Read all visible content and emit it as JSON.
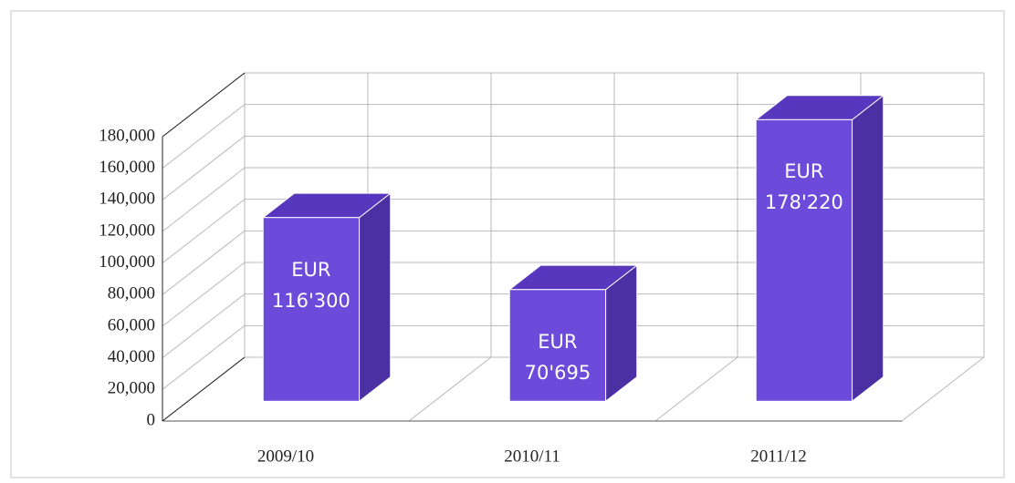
{
  "chart_data": {
    "type": "bar3d",
    "categories": [
      "2009/10",
      "2010/11",
      "2011/12"
    ],
    "values": [
      116300,
      70695,
      178220
    ],
    "value_labels": [
      "EUR 116'300",
      "EUR 70'695",
      "EUR 178'220"
    ],
    "color": "#6c4bdb",
    "ylim": [
      0,
      180000
    ],
    "yticks": [
      0,
      {
        "value": 20000,
        "label": "20,000"
      },
      {
        "value": 40000,
        "label": "40,000"
      },
      {
        "value": 60000,
        "label": "60,000"
      },
      {
        "value": 80000,
        "label": "80,000"
      },
      {
        "value": 100000,
        "label": "100,000"
      },
      {
        "value": 120000,
        "label": "120,000"
      },
      {
        "value": 140000,
        "label": "140,000"
      },
      {
        "value": 160000,
        "label": "160,000"
      },
      {
        "value": 180000,
        "label": "180,000"
      }
    ],
    "grid": true
  }
}
